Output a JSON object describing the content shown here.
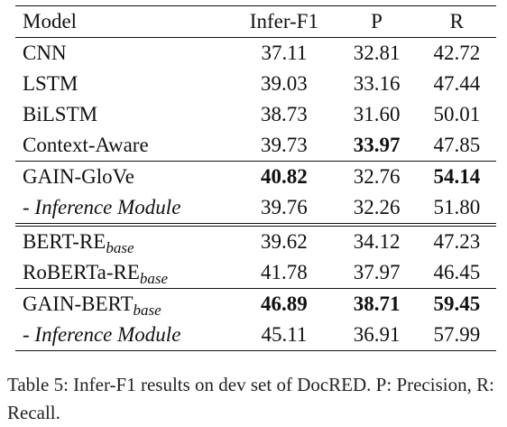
{
  "table": {
    "columns": [
      "Model",
      "Infer-F1",
      "P",
      "R"
    ],
    "groups": [
      {
        "rows": [
          {
            "model": "CNN",
            "sub": "",
            "italic": false,
            "infer_f1": "37.11",
            "p": "32.81",
            "r": "42.72",
            "bold": []
          },
          {
            "model": "LSTM",
            "sub": "",
            "italic": false,
            "infer_f1": "39.03",
            "p": "33.16",
            "r": "47.44",
            "bold": []
          },
          {
            "model": "BiLSTM",
            "sub": "",
            "italic": false,
            "infer_f1": "38.73",
            "p": "31.60",
            "r": "50.01",
            "bold": []
          },
          {
            "model": "Context-Aware",
            "sub": "",
            "italic": false,
            "infer_f1": "39.73",
            "p": "33.97",
            "r": "47.85",
            "bold": [
              "p"
            ]
          }
        ]
      },
      {
        "rows": [
          {
            "model": "GAIN-GloVe",
            "sub": "",
            "italic": false,
            "infer_f1": "40.82",
            "p": "32.76",
            "r": "54.14",
            "bold": [
              "infer_f1",
              "r"
            ]
          },
          {
            "model": "- Inference Module",
            "sub": "",
            "italic": true,
            "infer_f1": "39.76",
            "p": "32.26",
            "r": "51.80",
            "bold": []
          }
        ]
      },
      {
        "double_rule": true,
        "rows": [
          {
            "model": "BERT-RE",
            "sub": "base",
            "italic": false,
            "infer_f1": "39.62",
            "p": "34.12",
            "r": "47.23",
            "bold": []
          },
          {
            "model": "RoBERTa-RE",
            "sub": "base",
            "italic": false,
            "infer_f1": "41.78",
            "p": "37.97",
            "r": "46.45",
            "bold": []
          }
        ]
      },
      {
        "rows": [
          {
            "model": "GAIN-BERT",
            "sub": "base",
            "italic": false,
            "infer_f1": "46.89",
            "p": "38.71",
            "r": "59.45",
            "bold": [
              "infer_f1",
              "p",
              "r"
            ]
          },
          {
            "model": "- Inference Module",
            "sub": "",
            "italic": true,
            "infer_f1": "45.11",
            "p": "36.91",
            "r": "57.99",
            "bold": []
          }
        ]
      }
    ]
  },
  "caption": "Table 5: Infer-F1 results on dev set of DocRED. P: Precision, R: Recall."
}
